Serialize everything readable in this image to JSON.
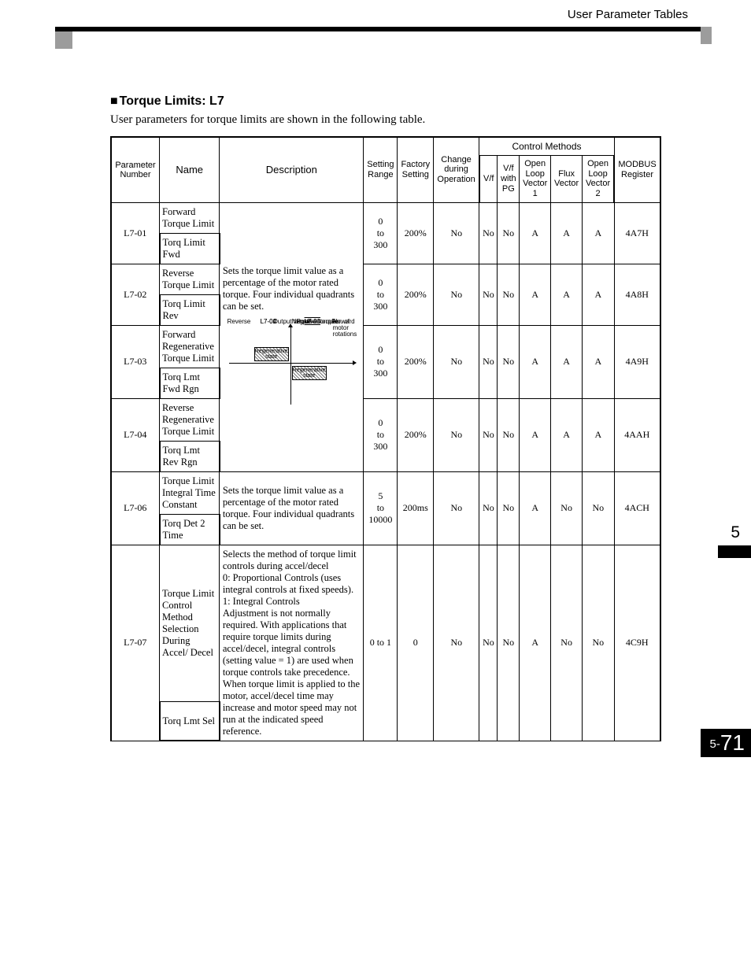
{
  "header": {
    "section": "User Parameter Tables"
  },
  "section": {
    "title": "Torque Limits: L7",
    "intro": "User parameters for torque limits are shown in the following table."
  },
  "columns": {
    "param_no": "Parameter Number",
    "name": "Name",
    "description": "Description",
    "setting_range": "Setting Range",
    "factory_setting": "Factory Setting",
    "change": "Change during Operation",
    "control_methods": "Control Methods",
    "vf": "V/f",
    "vf_pg": "V/f with PG",
    "olv1": "Open Loop Vector 1",
    "flux": "Flux Vector",
    "olv2": "Open Loop Vector 2",
    "modbus": "MODBUS Register"
  },
  "desc_group1": {
    "text": "Sets the torque limit value as a percentage of the motor rated torque. Four individual quadrants can be set.",
    "diagram": {
      "top_label": "Output torque",
      "pos_torque": "Positive torque",
      "neg_torque": "Negative torque",
      "l701": "L7-01",
      "l702": "L7-02",
      "l703": "L7-03",
      "l704": "L7-04",
      "regen": "Regenerative state",
      "reverse": "Reverse",
      "forward": "Forward",
      "rotations": "No. of motor rotations"
    }
  },
  "rows": [
    {
      "no": "L7-01",
      "name1": "Forward Torque Limit",
      "name2": "Torq Limit Fwd",
      "range": "0\nto\n300",
      "factory": "200%",
      "change": "No",
      "vf": "No",
      "vfpg": "No",
      "olv1": "A",
      "flux": "A",
      "olv2": "A",
      "modbus": "4A7H"
    },
    {
      "no": "L7-02",
      "name1": "Reverse Torque Limit",
      "name2": "Torq Limit Rev",
      "range": "0\nto\n300",
      "factory": "200%",
      "change": "No",
      "vf": "No",
      "vfpg": "No",
      "olv1": "A",
      "flux": "A",
      "olv2": "A",
      "modbus": "4A8H"
    },
    {
      "no": "L7-03",
      "name1": "Forward Regenerative Torque Limit",
      "name2": "Torq Lmt Fwd Rgn",
      "range": "0\nto\n300",
      "factory": "200%",
      "change": "No",
      "vf": "No",
      "vfpg": "No",
      "olv1": "A",
      "flux": "A",
      "olv2": "A",
      "modbus": "4A9H"
    },
    {
      "no": "L7-04",
      "name1": "Reverse Regenerative Torque Limit",
      "name2": "Torq Lmt Rev Rgn",
      "range": "0\nto\n300",
      "factory": "200%",
      "change": "No",
      "vf": "No",
      "vfpg": "No",
      "olv1": "A",
      "flux": "A",
      "olv2": "A",
      "modbus": "4AAH"
    },
    {
      "no": "L7-06",
      "name1": "Torque Limit Integral Time Constant",
      "name2": "Torq Det 2 Time",
      "desc": "Sets the torque limit value as a percentage of the motor rated torque. Four individual quadrants can be set.",
      "range": "5\nto\n10000",
      "factory": "200ms",
      "change": "No",
      "vf": "No",
      "vfpg": "No",
      "olv1": "A",
      "flux": "No",
      "olv2": "No",
      "modbus": "4ACH"
    },
    {
      "no": "L7-07",
      "name1": "Torque Limit Control Method Selection During Accel/ Decel",
      "name2": "Torq Lmt Sel",
      "desc": "Selects the method of torque limit controls during accel/decel\n0: Proportional Controls (uses integral controls at fixed speeds).\n1: Integral Controls\nAdjustment is not normally required. With applications that require torque limits during accel/decel, integral controls (setting value = 1) are used when torque controls take precedence. When torque limit is applied to the motor, accel/decel time may increase and motor speed may not run at the indicated speed reference.",
      "range": "0 to 1",
      "factory": "0",
      "change": "No",
      "vf": "No",
      "vfpg": "No",
      "olv1": "A",
      "flux": "No",
      "olv2": "No",
      "modbus": "4C9H"
    }
  ],
  "thumb": {
    "chapter": "5"
  },
  "footer": {
    "prefix": "5-",
    "page": "71"
  }
}
